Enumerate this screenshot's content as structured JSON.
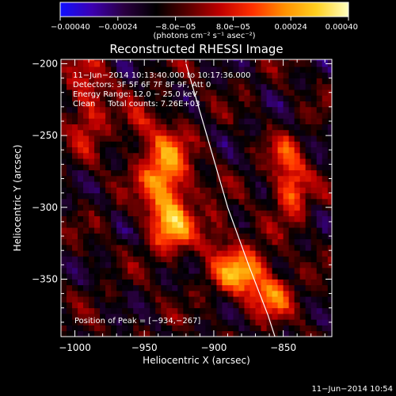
{
  "chart_data": {
    "type": "heatmap",
    "title": "Reconstructed RHESSI Image",
    "xlabel": "Heliocentric X (arcsec)",
    "ylabel": "Heliocentric Y (arcsec)",
    "xlim": [
      -1010,
      -815
    ],
    "ylim": [
      -390,
      -197
    ],
    "x_ticks": [
      -1000,
      -950,
      -900,
      -850
    ],
    "x_tick_labels": [
      "−1000",
      "−950",
      "−900",
      "−850"
    ],
    "y_ticks": [
      -200,
      -250,
      -300,
      -350
    ],
    "y_tick_labels": [
      "−200",
      "−250",
      "−300",
      "−350"
    ],
    "colorbar": {
      "range": [
        -0.0004,
        0.0004
      ],
      "ticks": [
        -0.0004,
        -0.00024,
        -8e-05,
        8e-05,
        0.00024,
        0.0004
      ],
      "tick_labels": [
        "−0.00040",
        "−0.00024",
        "−8.0e−05",
        "8.0e−05",
        "0.00024",
        "0.00040"
      ],
      "unit_label": "(photons cm⁻² s⁻¹ asec⁻²)",
      "colormap": [
        "#1010ff",
        "#3c00b0",
        "#2a0040",
        "#000000",
        "#5a0000",
        "#c00000",
        "#ff3000",
        "#ff9000",
        "#ffd020",
        "#ffffc0"
      ]
    },
    "annotations": [
      "11−Jun−2014 10:13:40.000 to 10:17:36.000",
      "Detectors: 3F 5F 6F 7F 8F 9F, Att 0",
      "Energy Range: 12.0 − 25.0 keV",
      "Clean     Total counts: 7.26E+03"
    ],
    "peak_label": "Position of Peak = [−934,−267]",
    "peak": [
      -934,
      -267
    ],
    "limb_curve": [
      [
        -920,
        -200
      ],
      [
        -905,
        -250
      ],
      [
        -890,
        -300
      ],
      [
        -875,
        -340
      ],
      [
        -861,
        -375
      ],
      [
        -856,
        -390
      ]
    ],
    "sources": [
      {
        "x": -990,
        "y": -228,
        "peak": 0.00022,
        "sigma_x": 10,
        "sigma_y": 22
      },
      {
        "x": -935,
        "y": -278,
        "peak": 0.0004,
        "sigma_x": 12,
        "sigma_y": 22
      },
      {
        "x": -930,
        "y": -315,
        "peak": 0.00026,
        "sigma_x": 11,
        "sigma_y": 13
      },
      {
        "x": -880,
        "y": -345,
        "peak": 0.00036,
        "sigma_x": 14,
        "sigma_y": 12
      },
      {
        "x": -858,
        "y": -362,
        "peak": 0.00028,
        "sigma_x": 10,
        "sigma_y": 10
      },
      {
        "x": -898,
        "y": -315,
        "peak": 0.00016,
        "sigma_x": 9,
        "sigma_y": 10
      },
      {
        "x": -845,
        "y": -285,
        "peak": 0.00032,
        "sigma_x": 9,
        "sigma_y": 14
      },
      {
        "x": -848,
        "y": -262,
        "peak": 0.00015,
        "sigma_x": 8,
        "sigma_y": 8
      },
      {
        "x": -955,
        "y": -245,
        "peak": 0.00012,
        "sigma_x": 8,
        "sigma_y": 10
      }
    ],
    "grid": false
  },
  "footer": {
    "timestamp": "11−Jun−2014 10:54"
  }
}
